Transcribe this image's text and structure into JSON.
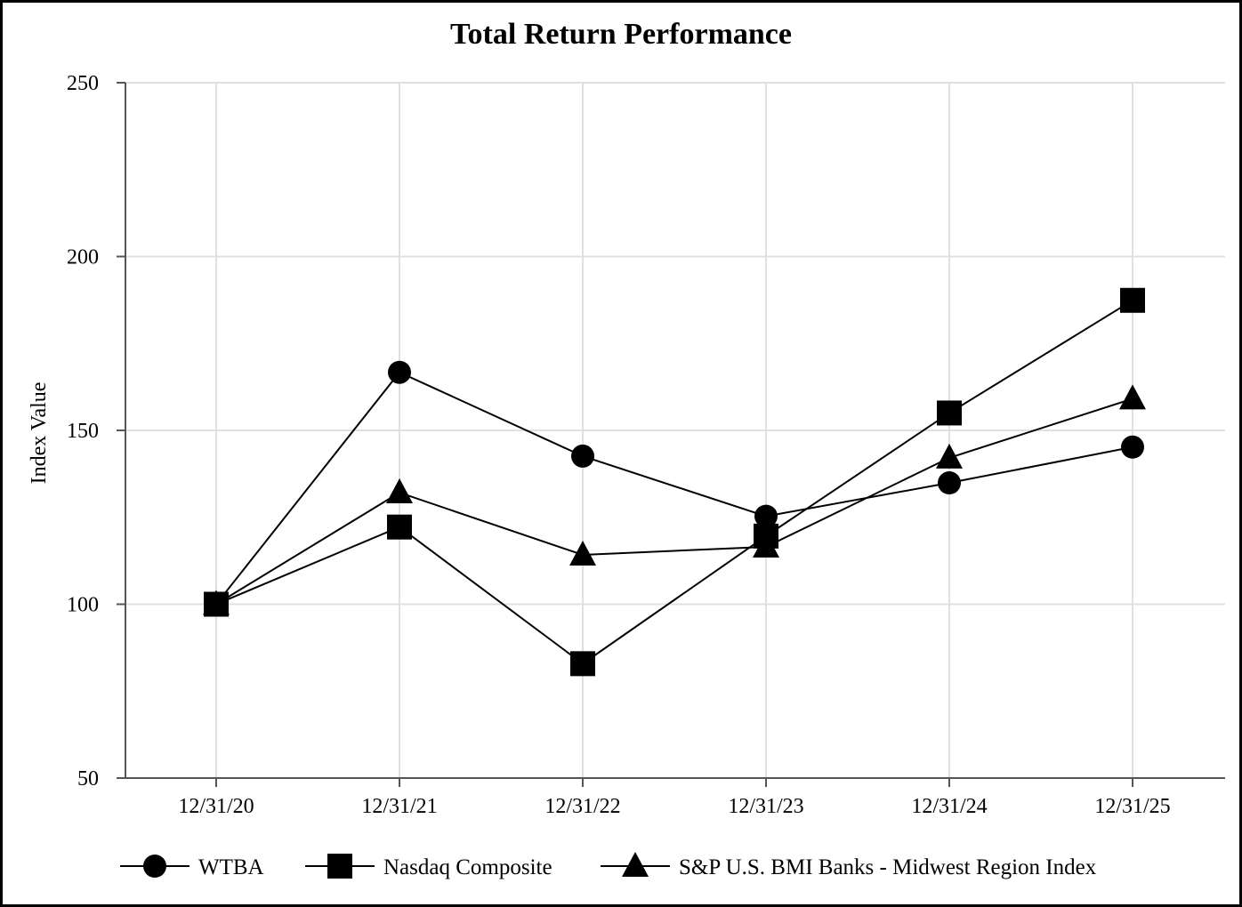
{
  "chart_data": {
    "type": "line",
    "title": "Total Return Performance",
    "xlabel": "",
    "ylabel": "Index Value",
    "categories": [
      "12/31/20",
      "12/31/21",
      "12/31/22",
      "12/31/23",
      "12/31/24",
      "12/31/25"
    ],
    "ylim": [
      50,
      250
    ],
    "yticks": [
      50,
      100,
      150,
      200,
      250
    ],
    "grid": true,
    "legend_position": "bottom",
    "series": [
      {
        "name": "WTBA",
        "marker": "circle",
        "values": [
          100,
          166.7,
          142.6,
          125.3,
          134.9,
          145.2
        ]
      },
      {
        "name": "Nasdaq Composite",
        "marker": "square",
        "values": [
          100,
          122.2,
          82.9,
          119.6,
          155,
          187.4
        ]
      },
      {
        "name": "S&P U.S. BMI Banks - Midwest Region Index",
        "marker": "triangle",
        "values": [
          100,
          132.1,
          114.2,
          116.5,
          142.1,
          159.1
        ]
      }
    ],
    "colors": {
      "line": "#000000",
      "grid": "#e0e0e0",
      "axis": "#555555"
    }
  }
}
